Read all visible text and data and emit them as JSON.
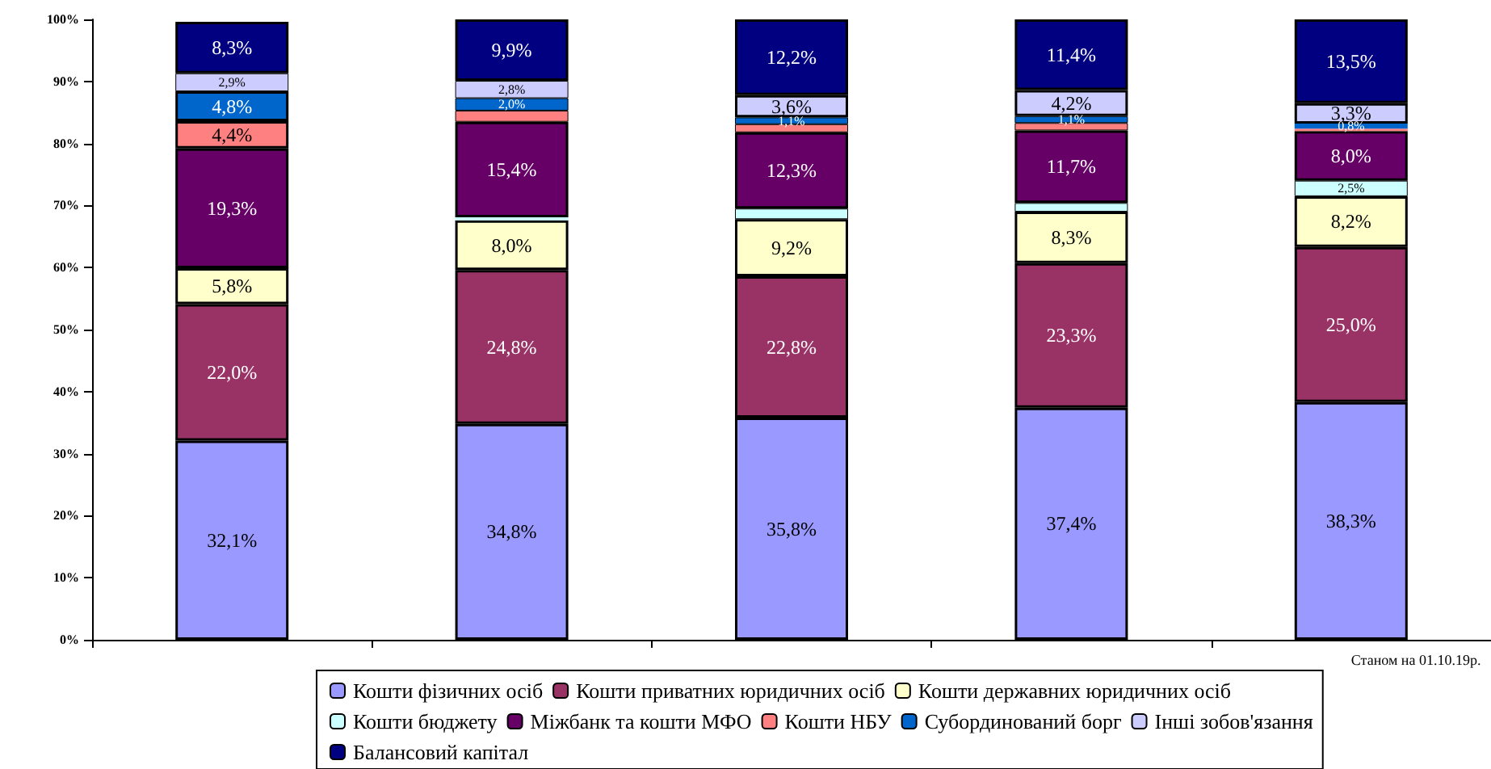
{
  "chart_data": {
    "type": "bar",
    "stacked": true,
    "categories": [
      null,
      null,
      null,
      null,
      "Станом на 01.10.19р."
    ],
    "ylim": [
      0,
      100
    ],
    "yticks": [
      {
        "value": 0,
        "label": "0%"
      },
      {
        "value": 10,
        "label": "10%"
      },
      {
        "value": 20,
        "label": "20%"
      },
      {
        "value": 30,
        "label": "30%"
      },
      {
        "value": 40,
        "label": "40%"
      },
      {
        "value": 50,
        "label": "50%"
      },
      {
        "value": 60,
        "label": "60%"
      },
      {
        "value": 70,
        "label": "70%"
      },
      {
        "value": 80,
        "label": "80%"
      },
      {
        "value": 90,
        "label": "90%"
      },
      {
        "value": 100,
        "label": "100%"
      }
    ],
    "grid": false,
    "legend": "bottom",
    "series": [
      {
        "name": "Кошти фізичних осіб",
        "color": "#9999ff",
        "values": [
          32.1,
          34.8,
          35.8,
          37.4,
          38.3
        ],
        "value_labels": [
          "32,1%",
          "34,8%",
          "35,8%",
          "37,4%",
          "38,3%"
        ]
      },
      {
        "name": "Кошти приватних юридичних осіб",
        "color": "#993366",
        "values": [
          22.0,
          24.8,
          22.8,
          23.3,
          25.0
        ],
        "value_labels": [
          "22,0%",
          "24,8%",
          "22,8%",
          "23,3%",
          "25,0%"
        ]
      },
      {
        "name": "Кошти державних юридичних осіб",
        "color": "#ffffcc",
        "values": [
          5.8,
          8.0,
          9.2,
          8.3,
          8.2
        ],
        "value_labels": [
          "5,8%",
          "8,0%",
          "9,2%",
          "8,3%",
          "8,2%"
        ]
      },
      {
        "name": "Кошти бюджету",
        "color": "#ccffff",
        "values": [
          null,
          0.5,
          1.7,
          1.4,
          2.5
        ],
        "value_labels": [
          null,
          null,
          null,
          null,
          "2,5%"
        ]
      },
      {
        "name": "Міжбанк та кошти МФО",
        "color": "#660066",
        "values": [
          19.3,
          15.4,
          12.3,
          11.7,
          8.0
        ],
        "value_labels": [
          "19,3%",
          "15,4%",
          "12,3%",
          "11,7%",
          "8,0%"
        ]
      },
      {
        "name": "Кошти НБУ",
        "color": "#ff8080",
        "values": [
          4.4,
          1.8,
          1.3,
          1.2,
          0.4
        ],
        "value_labels": [
          "4,4%",
          null,
          null,
          null,
          null
        ]
      },
      {
        "name": "Субординований борг",
        "color": "#0066cc",
        "values": [
          4.8,
          2.0,
          1.1,
          1.1,
          0.8
        ],
        "value_labels": [
          "4,8%",
          "2,0%",
          "1,1%",
          "1,1%",
          "0,8%"
        ]
      },
      {
        "name": "Інші зобов'язання",
        "color": "#ccccff",
        "values": [
          2.9,
          2.8,
          3.6,
          4.2,
          3.3
        ],
        "value_labels": [
          "2,9%",
          "2,8%",
          "3,6%",
          "4,2%",
          "3,3%"
        ]
      },
      {
        "name": "Балансовий капітал",
        "color": "#000080",
        "values": [
          8.3,
          9.9,
          12.2,
          11.4,
          13.5
        ],
        "value_labels": [
          "8,3%",
          "9,9%",
          "12,2%",
          "11,4%",
          "13,5%"
        ]
      }
    ]
  }
}
